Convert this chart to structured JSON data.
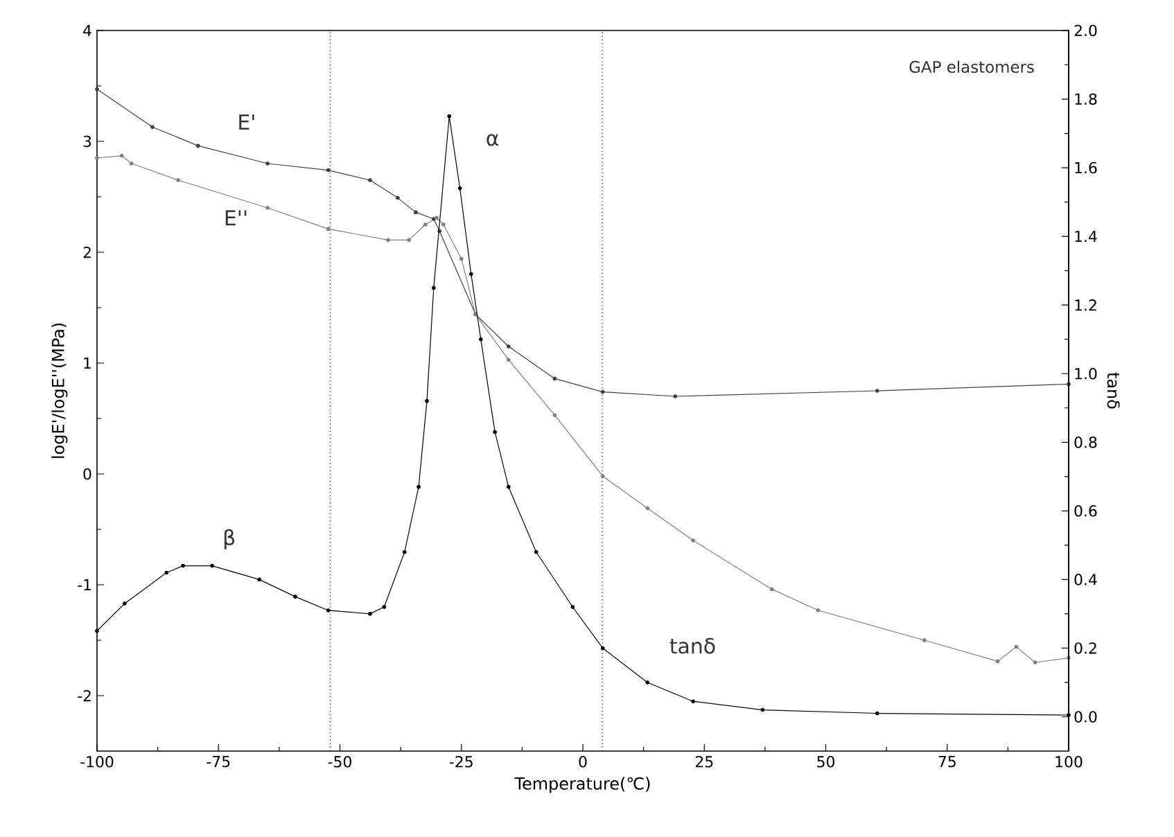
{
  "chart_data": {
    "type": "line",
    "xlabel": "Temperature(℃)",
    "ylabel": "logE'/logE''(MPa)",
    "y2label": "tanδ",
    "xlim": [
      -100,
      100
    ],
    "xticks": [
      -100,
      -75,
      -50,
      -25,
      0,
      25,
      50,
      75,
      100
    ],
    "ylim": [
      -2.5,
      4
    ],
    "yticks": [
      -2,
      -1,
      0,
      1,
      2,
      3,
      4
    ],
    "y2lim": [
      -0.1,
      2.0
    ],
    "y2ticks": [
      {
        "value": 0,
        "label": "0.0"
      },
      {
        "value": 0.2,
        "label": "0.2"
      },
      {
        "value": 0.4,
        "label": "0.4"
      },
      {
        "value": 0.6,
        "label": "0.6"
      },
      {
        "value": 0.8,
        "label": "0.8"
      },
      {
        "value": 1.0,
        "label": "1.0"
      },
      {
        "value": 1.2,
        "label": "1.2"
      },
      {
        "value": 1.4,
        "label": "1.4"
      },
      {
        "value": 1.6,
        "label": "1.6"
      },
      {
        "value": 1.8,
        "label": "1.8"
      },
      {
        "value": 2.0,
        "label": "2.0"
      }
    ],
    "marker": "circle",
    "line_style": "solid",
    "series": [
      {
        "color": "#404040",
        "x": [
          -100,
          -88.6,
          -79.2,
          -64.9,
          -52.4,
          -43.8,
          -38.1,
          -34.4,
          -30.7,
          -29.5,
          -22.1,
          -15.3,
          -5.8,
          4.1,
          19,
          60.6,
          100
        ],
        "values": [
          3.47,
          3.13,
          2.96,
          2.8,
          2.74,
          2.65,
          2.49,
          2.36,
          2.3,
          2.19,
          1.44,
          1.15,
          0.86,
          0.74,
          0.7,
          0.75,
          0.81
        ]
      },
      {
        "color": "#808080",
        "x": [
          -100,
          -94.9,
          -92.9,
          -83.3,
          -64.9,
          -52.4,
          -40.1,
          -35.8,
          -32.4,
          -30.1,
          -28.7,
          -25,
          -22.1,
          -15.3,
          -5.8,
          4.1,
          13.3,
          22.7,
          38.9,
          48.4,
          70.3,
          85.4,
          89.2,
          93.1,
          100
        ],
        "values": [
          2.85,
          2.87,
          2.8,
          2.65,
          2.4,
          2.21,
          2.11,
          2.11,
          2.25,
          2.31,
          2.25,
          1.94,
          1.44,
          1.03,
          0.53,
          -0.02,
          -0.31,
          -0.6,
          -1.04,
          -1.23,
          -1.5,
          -1.69,
          -1.56,
          -1.7,
          -1.66
        ]
      },
      {
        "color": "#000000",
        "axis": "y2",
        "x": [
          -100,
          -94.3,
          -85.7,
          -82.3,
          -76.3,
          -66.6,
          -59.2,
          -52.4,
          -43.8,
          -40.9,
          -36.7,
          -33.8,
          -32.1,
          -30.7,
          -27.5,
          -25.3,
          -23,
          -21,
          -18.1,
          -15.3,
          -9.6,
          -2.1,
          4.1,
          13.3,
          22.7,
          37,
          60.6,
          100
        ],
        "values": [
          0.25,
          0.33,
          0.42,
          0.44,
          0.44,
          0.4,
          0.35,
          0.31,
          0.3,
          0.32,
          0.48,
          0.67,
          0.92,
          1.25,
          1.75,
          1.54,
          1.29,
          1.1,
          0.83,
          0.67,
          0.48,
          0.32,
          0.2,
          0.1,
          0.045,
          0.02,
          0.01,
          0.005
        ]
      }
    ],
    "ref_lines": [
      {
        "axis": "x",
        "value": -52,
        "line_style": "dotted",
        "color": "#000000"
      },
      {
        "axis": "x",
        "value": 4,
        "line_style": "dotted",
        "color": "#000000"
      }
    ],
    "annotations": [
      "E'",
      "E''",
      "α",
      "β",
      "tanδ",
      "GAP elastomers"
    ]
  }
}
